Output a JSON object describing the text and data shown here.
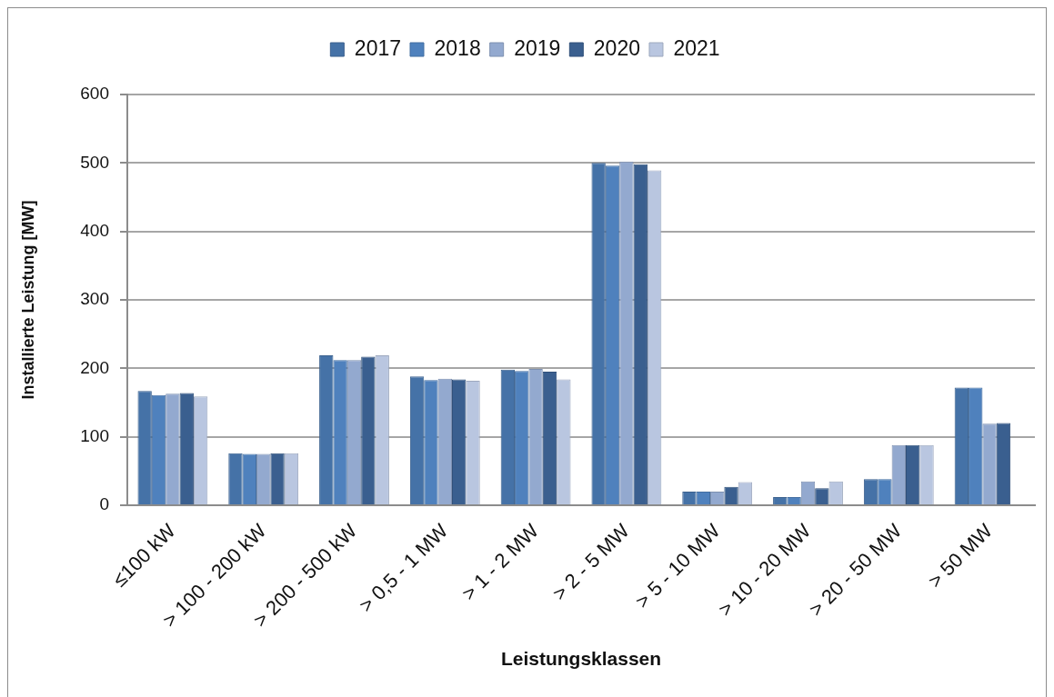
{
  "chart_data": {
    "type": "bar",
    "xlabel": "Leistungsklassen",
    "ylabel": "Installierte Leistung [MW]",
    "categories": [
      "≤100 kW",
      "> 100 - 200 kW",
      "> 200 - 500 kW",
      "> 0,5 - 1 MW",
      "> 1 - 2 MW",
      "> 2 - 5 MW",
      "> 5 - 10 MW",
      "> 10 - 20 MW",
      "> 20 - 50 MW",
      "> 50 MW"
    ],
    "series": [
      {
        "name": "2017",
        "color": "#4572a7",
        "values": [
          167,
          76,
          219,
          188,
          198,
          500,
          20,
          12,
          38,
          172
        ]
      },
      {
        "name": "2018",
        "color": "#4f81bd",
        "values": [
          161,
          75,
          212,
          183,
          196,
          496,
          20,
          12,
          38,
          172
        ]
      },
      {
        "name": "2019",
        "color": "#93a9cf",
        "values": [
          163,
          75,
          212,
          185,
          199,
          502,
          20,
          35,
          88,
          119
        ]
      },
      {
        "name": "2020",
        "color": "#3a5f8f",
        "values": [
          164,
          76,
          217,
          184,
          195,
          498,
          27,
          25,
          88,
          120
        ]
      },
      {
        "name": "2021",
        "color": "#b9c6e0",
        "values": [
          159,
          76,
          219,
          182,
          184,
          489,
          34,
          35,
          88,
          null
        ]
      }
    ],
    "ylim": [
      0,
      600
    ],
    "yticks": [
      0,
      100,
      200,
      300,
      400,
      500,
      600
    ],
    "grid": "y",
    "legend": "top"
  }
}
